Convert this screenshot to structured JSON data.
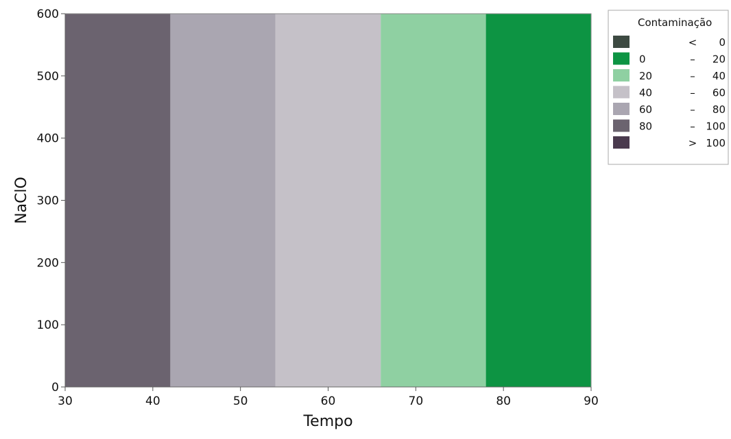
{
  "chart_data": {
    "type": "heatmap",
    "xlabel": "Tempo",
    "ylabel": "NaClO",
    "xlim": [
      30,
      90
    ],
    "ylim": [
      0,
      600
    ],
    "x_ticks": [
      "30",
      "40",
      "50",
      "60",
      "70",
      "80",
      "90"
    ],
    "y_ticks": [
      "0",
      "100",
      "200",
      "300",
      "400",
      "500",
      "600"
    ],
    "grid": false,
    "legend_position": "top-right",
    "legend_title": "Contaminação",
    "bands": [
      {
        "x_start": 30,
        "x_end": 42,
        "level": "80 – 100",
        "color": "#6b636f"
      },
      {
        "x_start": 42,
        "x_end": 54,
        "level": "60 – 80",
        "color": "#aaa6b1"
      },
      {
        "x_start": 54,
        "x_end": 66,
        "level": "40 – 60",
        "color": "#c5c1c8"
      },
      {
        "x_start": 66,
        "x_end": 78,
        "level": "20 – 40",
        "color": "#8fd0a2"
      },
      {
        "x_start": 78,
        "x_end": 90,
        "level": "0 – 20",
        "color": "#0d9443"
      }
    ],
    "legend": [
      {
        "low": "",
        "sep": "<",
        "high": "0",
        "color": "#3d4a42"
      },
      {
        "low": "0",
        "sep": "–",
        "high": "20",
        "color": "#0d9443"
      },
      {
        "low": "20",
        "sep": "–",
        "high": "40",
        "color": "#8fd0a2"
      },
      {
        "low": "40",
        "sep": "–",
        "high": "60",
        "color": "#c5c1c8"
      },
      {
        "low": "60",
        "sep": "–",
        "high": "80",
        "color": "#aaa6b1"
      },
      {
        "low": "80",
        "sep": "–",
        "high": "100",
        "color": "#6b636f"
      },
      {
        "low": "",
        "sep": ">",
        "high": "100",
        "color": "#4a3a4e"
      }
    ]
  }
}
